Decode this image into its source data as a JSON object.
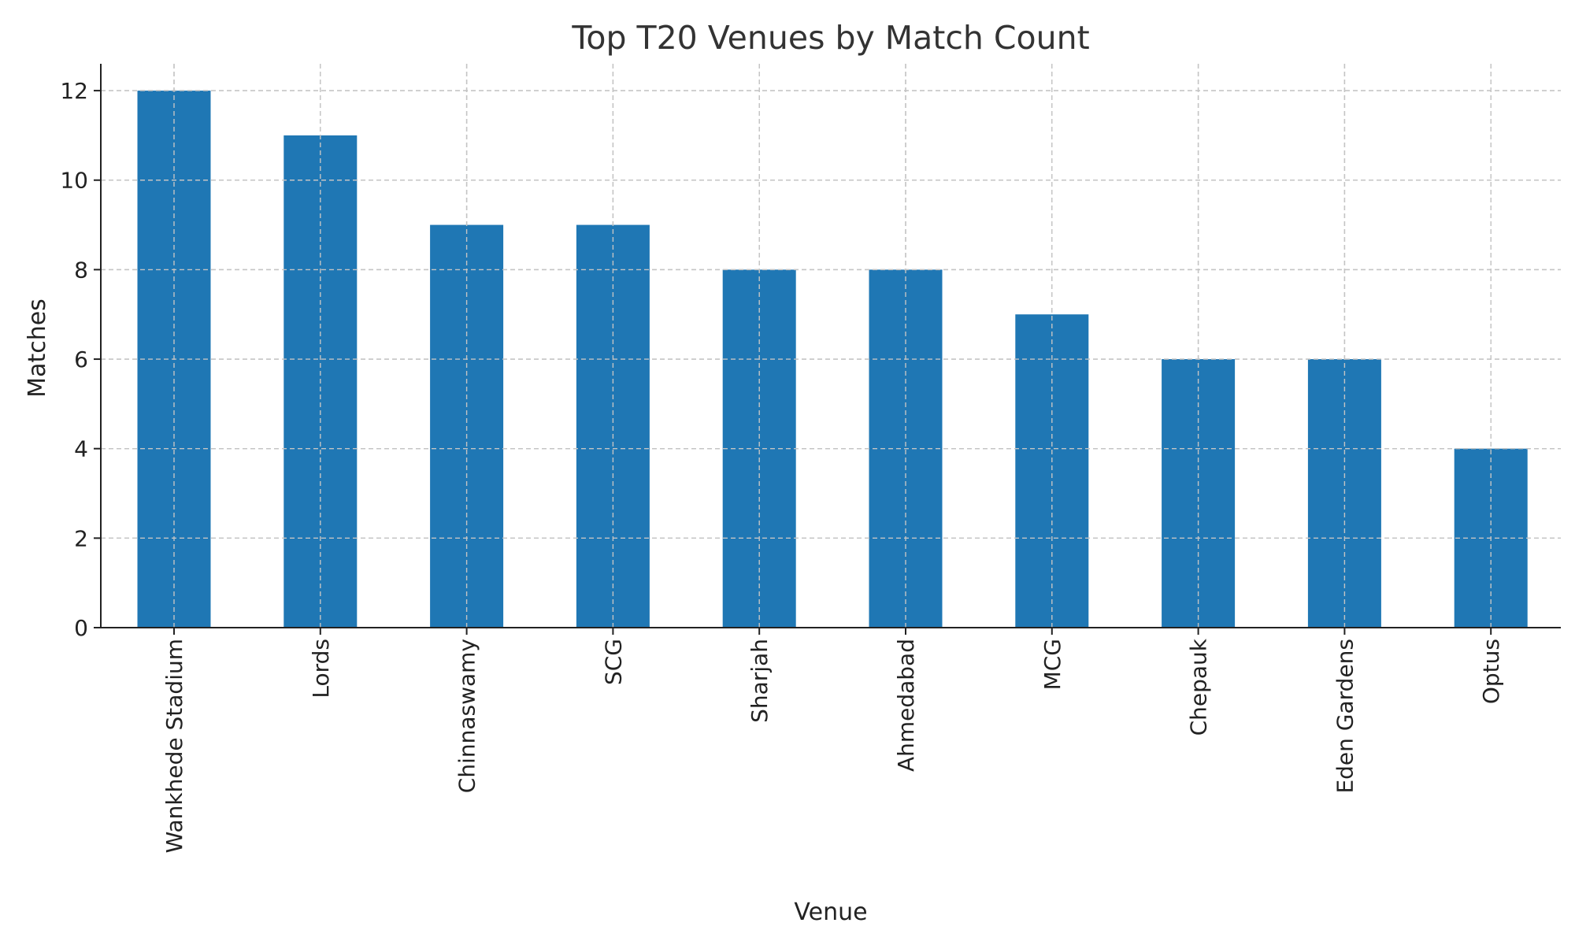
{
  "chart_data": {
    "type": "bar",
    "title": "Top T20 Venues by Match Count",
    "xlabel": "Venue",
    "ylabel": "Matches",
    "categories": [
      "Wankhede Stadium",
      "Lords",
      "Chinnaswamy",
      "SCG",
      "Sharjah",
      "Ahmedabad",
      "MCG",
      "Chepauk",
      "Eden Gardens",
      "Optus"
    ],
    "values": [
      12,
      11,
      9,
      9,
      8,
      8,
      7,
      6,
      6,
      4
    ],
    "ylim": [
      0,
      12.6
    ],
    "yticks": [
      0,
      2,
      4,
      6,
      8,
      10,
      12
    ],
    "grid": true,
    "bar_color": "#1f77b4"
  }
}
